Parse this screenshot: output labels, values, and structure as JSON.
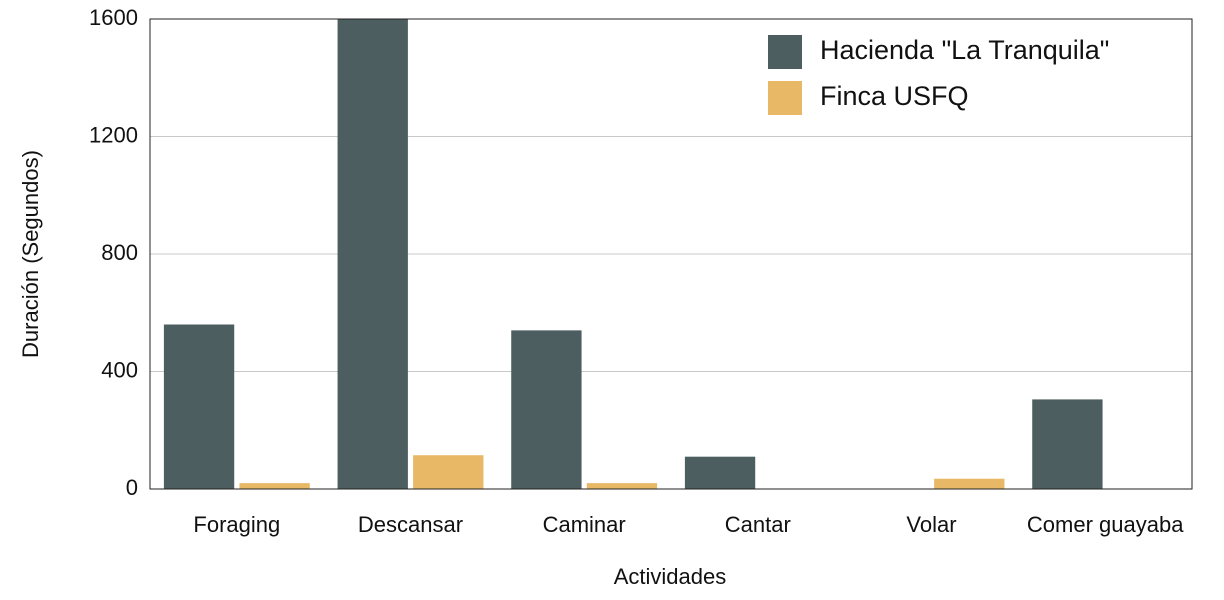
{
  "chart_data": {
    "type": "bar",
    "x_label": "Actividades",
    "y_label": "Duración (Segundos)",
    "categories": [
      "Foraging",
      "Descansar",
      "Caminar",
      "Cantar",
      "Volar",
      "Comer guayaba"
    ],
    "series": [
      {
        "name": "Hacienda \"La Tranquila\"",
        "color": "#4d5e60",
        "values": [
          560,
          1600,
          540,
          110,
          0,
          305
        ]
      },
      {
        "name": "Finca USFQ",
        "color": "#e8b866",
        "values": [
          20,
          115,
          20,
          0,
          35,
          0
        ]
      }
    ],
    "ylim": [
      0,
      1600
    ],
    "yticks": [
      0,
      400,
      800,
      1200,
      1600
    ],
    "grid": true,
    "legend": "upper right"
  }
}
